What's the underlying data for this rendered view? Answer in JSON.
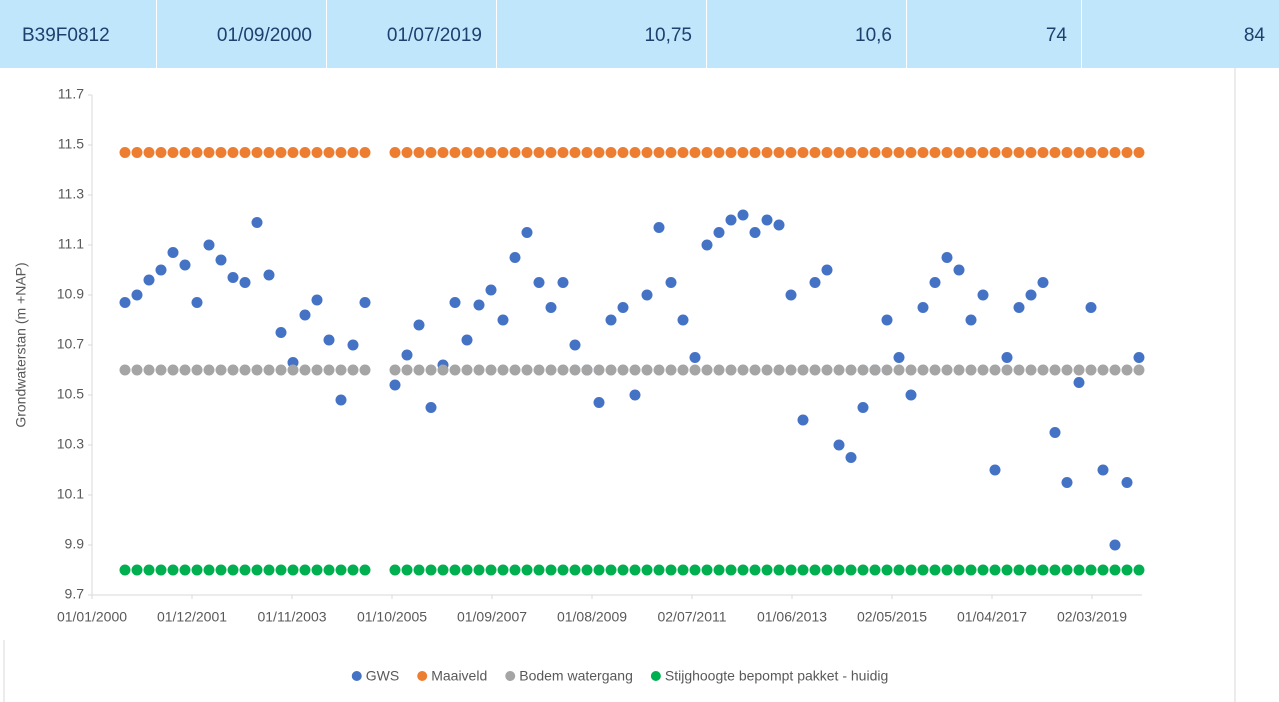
{
  "header": {
    "cells": [
      "B39F0812",
      "01/09/2000",
      "01/07/2019",
      "10,75",
      "10,6",
      "74",
      "84"
    ]
  },
  "chart_data": {
    "type": "scatter",
    "y_label": "Grondwaterstan (m +NAP)",
    "x": [
      36757,
      36841,
      36925,
      37009,
      37093,
      37177,
      37261,
      37345,
      37429,
      37513,
      37597,
      37681,
      37765,
      37849,
      37933,
      38017,
      38101,
      38185,
      38269,
      38353,
      38437,
      38647,
      38731,
      38815,
      38899,
      38983,
      39067,
      39151,
      39235,
      39319,
      39403,
      39487,
      39571,
      39655,
      39739,
      39823,
      39907,
      39991,
      40075,
      40159,
      40243,
      40327,
      40411,
      40495,
      40579,
      40663,
      40747,
      40831,
      40915,
      40999,
      41083,
      41167,
      41251,
      41335,
      41419,
      41503,
      41587,
      41671,
      41755,
      41839,
      41923,
      42007,
      42091,
      42175,
      42259,
      42343,
      42427,
      42511,
      42595,
      42679,
      42763,
      42847,
      42931,
      43015,
      43099,
      43183,
      43267,
      43351,
      43435,
      43519,
      43603,
      43687,
      43771,
      43855
    ],
    "series": [
      {
        "name": "GWS",
        "color": "#4472c4",
        "values": [
          10.87,
          10.9,
          10.96,
          11.0,
          11.07,
          11.02,
          10.87,
          11.1,
          11.04,
          10.97,
          10.95,
          11.19,
          10.98,
          10.75,
          10.63,
          10.82,
          10.88,
          10.72,
          10.48,
          10.7,
          10.87,
          10.54,
          10.66,
          10.78,
          10.45,
          10.62,
          10.87,
          10.72,
          10.86,
          10.92,
          10.8,
          11.05,
          11.15,
          10.95,
          10.85,
          10.95,
          10.7,
          10.6,
          10.47,
          10.8,
          10.85,
          10.5,
          10.9,
          11.17,
          10.95,
          10.8,
          10.65,
          11.1,
          11.15,
          11.2,
          11.22,
          11.15,
          11.2,
          11.18,
          10.9,
          10.4,
          10.95,
          11.0,
          10.3,
          10.25,
          10.45,
          10.6,
          10.8,
          10.65,
          10.5,
          10.85,
          10.95,
          11.05,
          11.0,
          10.8,
          10.9,
          10.2,
          10.65,
          10.85,
          10.9,
          10.95,
          10.35,
          10.15,
          10.55,
          10.85,
          10.2,
          9.9,
          10.15,
          10.65
        ]
      },
      {
        "name": "Maaiveld",
        "color": "#ed7d31",
        "values": [
          11.47,
          11.47,
          11.47,
          11.47,
          11.47,
          11.47,
          11.47,
          11.47,
          11.47,
          11.47,
          11.47,
          11.47,
          11.47,
          11.47,
          11.47,
          11.47,
          11.47,
          11.47,
          11.47,
          11.47,
          11.47,
          11.47,
          11.47,
          11.47,
          11.47,
          11.47,
          11.47,
          11.47,
          11.47,
          11.47,
          11.47,
          11.47,
          11.47,
          11.47,
          11.47,
          11.47,
          11.47,
          11.47,
          11.47,
          11.47,
          11.47,
          11.47,
          11.47,
          11.47,
          11.47,
          11.47,
          11.47,
          11.47,
          11.47,
          11.47,
          11.47,
          11.47,
          11.47,
          11.47,
          11.47,
          11.47,
          11.47,
          11.47,
          11.47,
          11.47,
          11.47,
          11.47,
          11.47,
          11.47,
          11.47,
          11.47,
          11.47,
          11.47,
          11.47,
          11.47,
          11.47,
          11.47,
          11.47,
          11.47,
          11.47,
          11.47,
          11.47,
          11.47,
          11.47,
          11.47,
          11.47,
          11.47,
          11.47,
          11.47
        ]
      },
      {
        "name": "Bodem watergang",
        "color": "#a5a5a5",
        "values": [
          10.6,
          10.6,
          10.6,
          10.6,
          10.6,
          10.6,
          10.6,
          10.6,
          10.6,
          10.6,
          10.6,
          10.6,
          10.6,
          10.6,
          10.6,
          10.6,
          10.6,
          10.6,
          10.6,
          10.6,
          10.6,
          10.6,
          10.6,
          10.6,
          10.6,
          10.6,
          10.6,
          10.6,
          10.6,
          10.6,
          10.6,
          10.6,
          10.6,
          10.6,
          10.6,
          10.6,
          10.6,
          10.6,
          10.6,
          10.6,
          10.6,
          10.6,
          10.6,
          10.6,
          10.6,
          10.6,
          10.6,
          10.6,
          10.6,
          10.6,
          10.6,
          10.6,
          10.6,
          10.6,
          10.6,
          10.6,
          10.6,
          10.6,
          10.6,
          10.6,
          10.6,
          10.6,
          10.6,
          10.6,
          10.6,
          10.6,
          10.6,
          10.6,
          10.6,
          10.6,
          10.6,
          10.6,
          10.6,
          10.6,
          10.6,
          10.6,
          10.6,
          10.6,
          10.6,
          10.6,
          10.6,
          10.6,
          10.6,
          10.6
        ]
      },
      {
        "name": "Stijghoogte bepompt pakket - huidig",
        "color": "#00b050",
        "values": [
          9.8,
          9.8,
          9.8,
          9.8,
          9.8,
          9.8,
          9.8,
          9.8,
          9.8,
          9.8,
          9.8,
          9.8,
          9.8,
          9.8,
          9.8,
          9.8,
          9.8,
          9.8,
          9.8,
          9.8,
          9.8,
          9.8,
          9.8,
          9.8,
          9.8,
          9.8,
          9.8,
          9.8,
          9.8,
          9.8,
          9.8,
          9.8,
          9.8,
          9.8,
          9.8,
          9.8,
          9.8,
          9.8,
          9.8,
          9.8,
          9.8,
          9.8,
          9.8,
          9.8,
          9.8,
          9.8,
          9.8,
          9.8,
          9.8,
          9.8,
          9.8,
          9.8,
          9.8,
          9.8,
          9.8,
          9.8,
          9.8,
          9.8,
          9.8,
          9.8,
          9.8,
          9.8,
          9.8,
          9.8,
          9.8,
          9.8,
          9.8,
          9.8,
          9.8,
          9.8,
          9.8,
          9.8,
          9.8,
          9.8,
          9.8,
          9.8,
          9.8,
          9.8,
          9.8,
          9.8,
          9.8,
          9.8,
          9.8,
          9.8
        ]
      }
    ],
    "xlim": [
      36526,
      43876
    ],
    "xticks": [
      {
        "value": 36526,
        "label": "01/01/2000"
      },
      {
        "value": 37226,
        "label": "01/12/2001"
      },
      {
        "value": 37926,
        "label": "01/11/2003"
      },
      {
        "value": 38626,
        "label": "01/10/2005"
      },
      {
        "value": 39326,
        "label": "01/09/2007"
      },
      {
        "value": 40026,
        "label": "01/08/2009"
      },
      {
        "value": 40726,
        "label": "02/07/2011"
      },
      {
        "value": 41426,
        "label": "01/06/2013"
      },
      {
        "value": 42126,
        "label": "02/05/2015"
      },
      {
        "value": 42826,
        "label": "01/04/2017"
      },
      {
        "value": 43526,
        "label": "02/03/2019"
      }
    ],
    "ylim": [
      9.7,
      11.7
    ],
    "yticks": [
      9.7,
      9.9,
      10.1,
      10.3,
      10.5,
      10.7,
      10.9,
      11.1,
      11.3,
      11.5,
      11.7
    ],
    "grid": false,
    "legend": "bottom"
  }
}
